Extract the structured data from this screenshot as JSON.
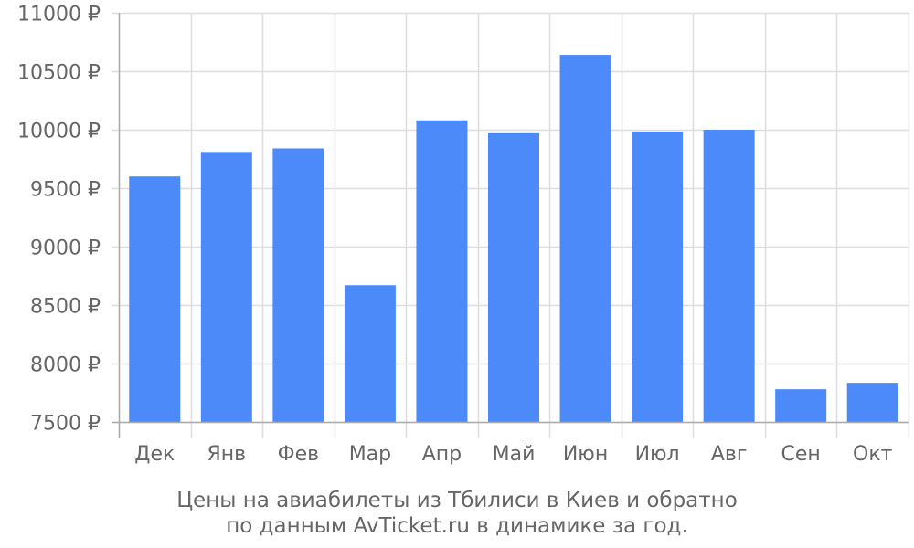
{
  "chart_data": {
    "type": "bar",
    "categories": [
      "Дек",
      "Янв",
      "Фев",
      "Мар",
      "Апр",
      "Май",
      "Июн",
      "Июл",
      "Авг",
      "Сен",
      "Окт"
    ],
    "values": [
      9600,
      9810,
      9840,
      8670,
      10080,
      9970,
      10640,
      9985,
      10000,
      7780,
      7835
    ],
    "ylim": [
      7500,
      11000
    ],
    "yticks": [
      7500,
      8000,
      8500,
      9000,
      9500,
      10000,
      10500,
      11000
    ],
    "ytick_suffix": " ₽",
    "title": "",
    "caption_lines": [
      "Цены на авиабилеты из Тбилиси в Киев и обратно",
      "по данным AvTicket.ru в динамике за год."
    ],
    "bar_color": "#4d8af9",
    "grid_color": "#dddddd",
    "axis_color": "#aaaaaa",
    "grid": true
  }
}
